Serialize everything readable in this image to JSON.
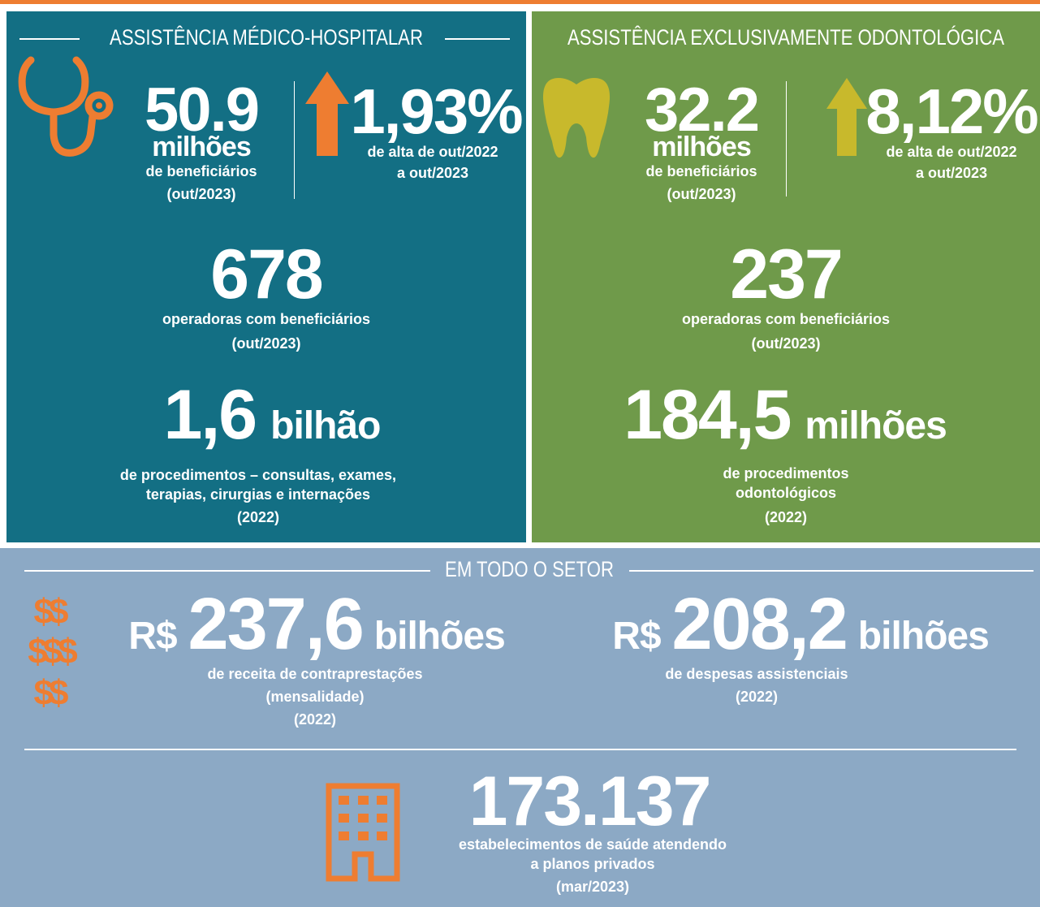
{
  "left": {
    "heading": "ASSISTÊNCIA MÉDICO-HOSPITALAR",
    "beneficiaries": {
      "value": "50.9",
      "unit": "milhões",
      "label": "de beneficiários",
      "period": "(out/2023)"
    },
    "growth": {
      "value": "1,93%",
      "label": "de alta de out/2022",
      "period": "a out/2023"
    },
    "operators": {
      "value": "678",
      "label": "operadoras com beneficiários",
      "period": "(out/2023)"
    },
    "procedures": {
      "value": "1,6",
      "unit": "bilhão",
      "lines": [
        "de procedimentos – consultas, exames,",
        "terapias, cirurgias e internações"
      ],
      "period": "(2022)"
    }
  },
  "right": {
    "heading": "ASSISTÊNCIA EXCLUSIVAMENTE ODONTOLÓGICA",
    "beneficiaries": {
      "value": "32.2",
      "unit": "milhões",
      "label": "de beneficiários",
      "period": "(out/2023)"
    },
    "growth": {
      "value": "8,12%",
      "label": "de alta de out/2022",
      "period": "a out/2023"
    },
    "operators": {
      "value": "237",
      "label": "operadoras com beneficiários",
      "period": "(out/2023)"
    },
    "procedures": {
      "value": "184,5",
      "unit": "milhões",
      "lines": [
        "de procedimentos",
        "odontológicos"
      ],
      "period": "(2022)"
    }
  },
  "sector": {
    "heading": "EM TODO O SETOR",
    "icon_text": [
      "$$",
      "$$$",
      "$$"
    ],
    "revenue": {
      "currency": "R$",
      "value": "237,6",
      "unit": "bilhões",
      "lines": [
        "de receita de contraprestações",
        "(mensalidade)"
      ],
      "period": "(2022)"
    },
    "expenses": {
      "currency": "R$",
      "value": "208,2",
      "unit": "bilhões",
      "lines": [
        "de despesas assistenciais"
      ],
      "period": "(2022)"
    },
    "establishments": {
      "value": "173.137",
      "lines": [
        "estabelecimentos de saúde atendendo",
        "a planos privados"
      ],
      "period": "(mar/2023)"
    }
  }
}
